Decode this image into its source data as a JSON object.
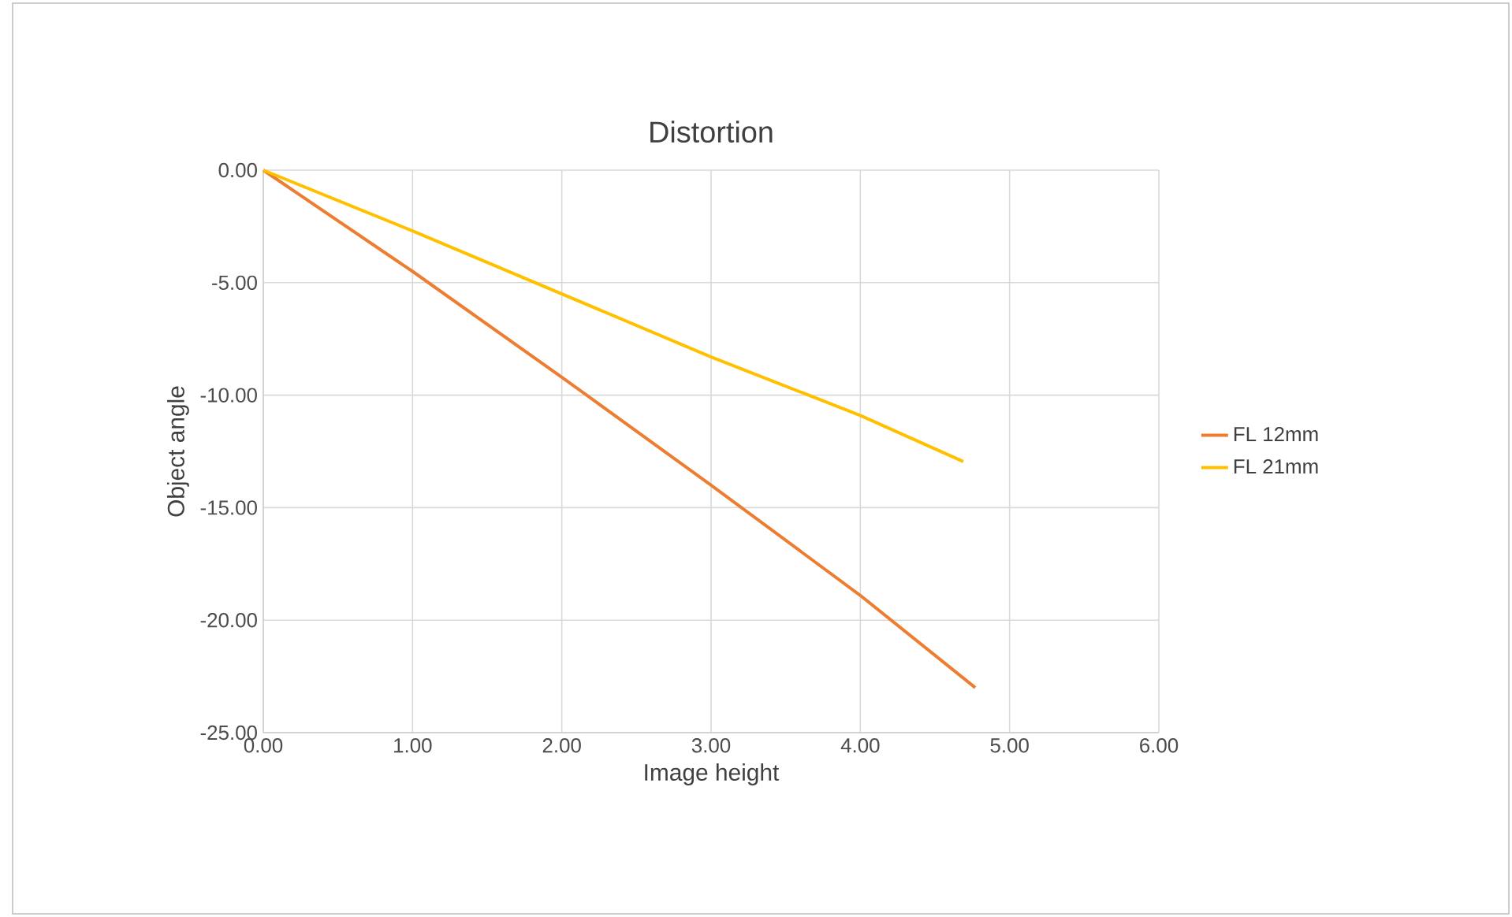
{
  "chart_data": {
    "type": "line",
    "title": "Distortion",
    "xlabel": "Image height",
    "ylabel": "Object angle",
    "xlim": [
      0,
      6
    ],
    "ylim": [
      -25,
      0
    ],
    "xticks": [
      {
        "value": 0,
        "label": "0.00"
      },
      {
        "value": 1,
        "label": "1.00"
      },
      {
        "value": 2,
        "label": "2.00"
      },
      {
        "value": 3,
        "label": "3.00"
      },
      {
        "value": 4,
        "label": "4.00"
      },
      {
        "value": 5,
        "label": "5.00"
      },
      {
        "value": 6,
        "label": "6.00"
      }
    ],
    "yticks": [
      {
        "value": -25,
        "label": "-25.00"
      },
      {
        "value": -20,
        "label": "-20.00"
      },
      {
        "value": -15,
        "label": "-15.00"
      },
      {
        "value": -10,
        "label": "-10.00"
      },
      {
        "value": -5,
        "label": "-5.00"
      },
      {
        "value": 0,
        "label": "0.00"
      }
    ],
    "grid": true,
    "legend": "right",
    "marker": "none",
    "line_style": "solid",
    "series": [
      {
        "name": "FL 12mm",
        "color": "#ed7d31",
        "x": [
          0,
          1,
          2,
          3,
          4,
          4.77
        ],
        "values": [
          0,
          -4.5,
          -9.2,
          -14.0,
          -18.9,
          -23.0
        ]
      },
      {
        "name": "FL 21mm",
        "color": "#ffc000",
        "x": [
          0,
          1,
          2,
          3,
          4,
          4.69
        ],
        "values": [
          0,
          -2.7,
          -5.5,
          -8.3,
          -10.9,
          -12.95
        ]
      }
    ]
  }
}
